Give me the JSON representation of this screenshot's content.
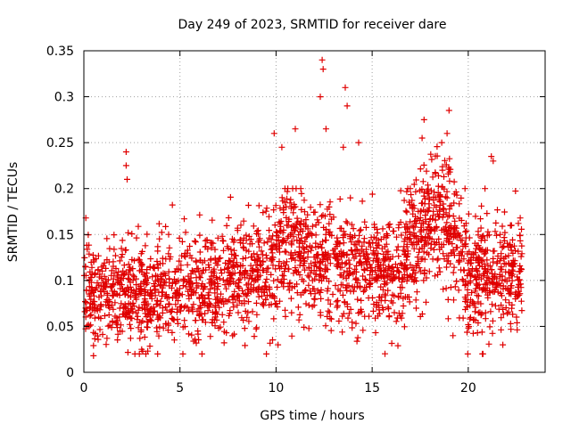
{
  "chart_data": {
    "type": "scatter",
    "title": "Day 249 of 2023, SRMTID for receiver dare",
    "xlabel": "GPS time / hours",
    "ylabel": "SRMTID / TECUs",
    "xlim": [
      0,
      24
    ],
    "ylim": [
      0,
      0.35
    ],
    "x_ticks": [
      0,
      5,
      10,
      15,
      20
    ],
    "x_tick_labels": [
      "0",
      "5",
      "10",
      "15",
      "20"
    ],
    "y_ticks": [
      0,
      0.05,
      0.1,
      0.15,
      0.2,
      0.25,
      0.3,
      0.35
    ],
    "y_tick_labels": [
      "0",
      "0.05",
      "0.1",
      "0.15",
      "0.2",
      "0.25",
      "0.3",
      "0.35"
    ],
    "grid": true,
    "marker": "+",
    "color": "#e00000",
    "baseline_profile": {
      "x": [
        0,
        0.3,
        1,
        2,
        3,
        4,
        5,
        6,
        7,
        8,
        9,
        10,
        11,
        12,
        13,
        14,
        15,
        16,
        17,
        18,
        19,
        19.5,
        20,
        21,
        22,
        22.8
      ],
      "y": [
        0.11,
        0.08,
        0.08,
        0.085,
        0.08,
        0.085,
        0.09,
        0.095,
        0.1,
        0.11,
        0.105,
        0.12,
        0.14,
        0.115,
        0.12,
        0.12,
        0.11,
        0.105,
        0.13,
        0.17,
        0.16,
        0.12,
        0.11,
        0.105,
        0.1,
        0.1
      ]
    },
    "notable_points": [
      {
        "x": 2.2,
        "y": 0.24
      },
      {
        "x": 2.2,
        "y": 0.225
      },
      {
        "x": 2.25,
        "y": 0.21
      },
      {
        "x": 0.1,
        "y": 0.168
      },
      {
        "x": 0.5,
        "y": 0.018
      },
      {
        "x": 9.9,
        "y": 0.26
      },
      {
        "x": 10.3,
        "y": 0.245
      },
      {
        "x": 11.0,
        "y": 0.265
      },
      {
        "x": 12.4,
        "y": 0.34
      },
      {
        "x": 12.45,
        "y": 0.33
      },
      {
        "x": 12.3,
        "y": 0.3
      },
      {
        "x": 12.6,
        "y": 0.265
      },
      {
        "x": 13.6,
        "y": 0.31
      },
      {
        "x": 13.7,
        "y": 0.29
      },
      {
        "x": 13.5,
        "y": 0.245
      },
      {
        "x": 14.3,
        "y": 0.25
      },
      {
        "x": 17.7,
        "y": 0.275
      },
      {
        "x": 17.6,
        "y": 0.255
      },
      {
        "x": 19.0,
        "y": 0.285
      },
      {
        "x": 18.9,
        "y": 0.26
      },
      {
        "x": 21.2,
        "y": 0.235
      },
      {
        "x": 21.3,
        "y": 0.23
      },
      {
        "x": 9.5,
        "y": 0.02
      },
      {
        "x": 10.1,
        "y": 0.03
      },
      {
        "x": 21.8,
        "y": 0.03
      }
    ],
    "point_count": 2400,
    "random_seed": 249
  }
}
